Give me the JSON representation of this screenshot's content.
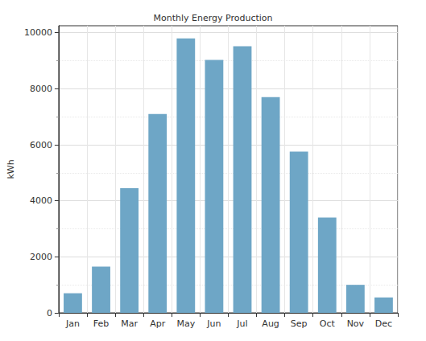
{
  "chart_data": {
    "type": "bar",
    "title": "Monthly Energy Production",
    "y_label": "kWh",
    "categories": [
      "Jan",
      "Feb",
      "Mar",
      "Apr",
      "May",
      "Jun",
      "Jul",
      "Aug",
      "Sep",
      "Oct",
      "Nov",
      "Dec"
    ],
    "values": [
      700,
      1650,
      4450,
      7100,
      9800,
      9030,
      9520,
      7700,
      5760,
      3400,
      1000,
      550
    ],
    "color": "#6ea6c6",
    "ylim": [
      0,
      10250
    ],
    "yticks": [
      0,
      2000,
      4000,
      6000,
      8000,
      10000
    ],
    "grid": true
  }
}
